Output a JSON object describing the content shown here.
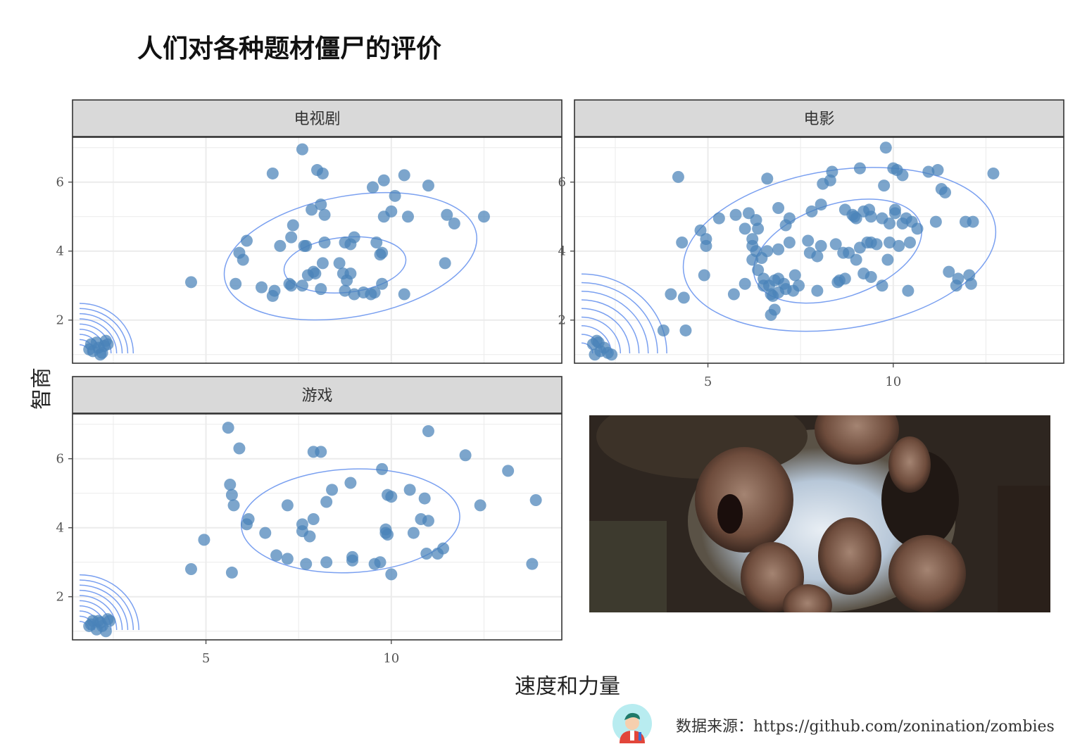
{
  "title": "人们对各种题材僵尸的评价",
  "xlabel": "速度和力量",
  "ylabel": "智商",
  "caption": {
    "label": "数据来源：",
    "url": "https://github.com/zonination/zombies",
    "icon": "avatar-icon"
  },
  "photo": {
    "icon": "zombie-photo",
    "alt": "zombies"
  },
  "colors": {
    "point": "#4a82b8",
    "contour": "#7aa0f0",
    "strip_bg": "#d9d9d9",
    "grid": "#ebebeb",
    "border": "#333333"
  },
  "chart_data": [
    {
      "type": "scatter",
      "facet": "电视剧",
      "x_ticks": [
        5,
        10
      ],
      "y_ticks": [
        2,
        4,
        6
      ],
      "xlim": [
        1.4,
        14.6
      ],
      "ylim": [
        0.75,
        7.3
      ],
      "grid": true,
      "points": [
        [
          1.9,
          1.3
        ],
        [
          2.1,
          1.2
        ],
        [
          2.3,
          1.4
        ],
        [
          1.95,
          1.1
        ],
        [
          2.15,
          1.0
        ],
        [
          2.25,
          1.25
        ],
        [
          2.05,
          1.35
        ],
        [
          1.85,
          1.15
        ],
        [
          2.2,
          1.05
        ],
        [
          2.35,
          1.3
        ],
        [
          7.6,
          6.95
        ],
        [
          6.8,
          6.25
        ],
        [
          8.0,
          6.35
        ],
        [
          8.15,
          6.25
        ],
        [
          9.8,
          6.05
        ],
        [
          10.35,
          6.2
        ],
        [
          11.0,
          5.9
        ],
        [
          9.5,
          5.85
        ],
        [
          10.1,
          5.6
        ],
        [
          8.1,
          5.35
        ],
        [
          7.85,
          5.2
        ],
        [
          8.2,
          5.05
        ],
        [
          9.8,
          5.0
        ],
        [
          10.0,
          5.15
        ],
        [
          10.45,
          5.0
        ],
        [
          11.5,
          5.05
        ],
        [
          11.7,
          4.8
        ],
        [
          12.5,
          5.0
        ],
        [
          7.35,
          4.75
        ],
        [
          6.1,
          4.3
        ],
        [
          5.9,
          3.95
        ],
        [
          6.0,
          3.75
        ],
        [
          7.0,
          4.15
        ],
        [
          7.3,
          4.4
        ],
        [
          7.7,
          4.15
        ],
        [
          7.65,
          4.15
        ],
        [
          8.2,
          4.25
        ],
        [
          8.75,
          4.25
        ],
        [
          8.9,
          4.2
        ],
        [
          9.0,
          4.4
        ],
        [
          9.6,
          4.25
        ],
        [
          9.75,
          3.95
        ],
        [
          9.7,
          3.9
        ],
        [
          8.6,
          3.65
        ],
        [
          8.15,
          3.65
        ],
        [
          7.9,
          3.4
        ],
        [
          7.75,
          3.3
        ],
        [
          7.95,
          3.35
        ],
        [
          8.7,
          3.35
        ],
        [
          8.9,
          3.35
        ],
        [
          8.8,
          3.15
        ],
        [
          7.25,
          3.05
        ],
        [
          7.3,
          3.0
        ],
        [
          7.6,
          3.0
        ],
        [
          8.1,
          2.9
        ],
        [
          8.75,
          2.85
        ],
        [
          9.25,
          2.8
        ],
        [
          9.55,
          2.8
        ],
        [
          9.75,
          3.05
        ],
        [
          10.35,
          2.75
        ],
        [
          11.45,
          3.65
        ],
        [
          4.6,
          3.1
        ],
        [
          5.8,
          3.05
        ],
        [
          6.8,
          2.7
        ],
        [
          6.85,
          2.85
        ],
        [
          9.45,
          2.75
        ],
        [
          6.5,
          2.95
        ],
        [
          9.0,
          2.75
        ]
      ],
      "contours": [
        {
          "cx": 8.9,
          "cy": 3.85,
          "rx": 3.45,
          "ry": 1.75,
          "rot": -0.18
        },
        {
          "cx": 8.75,
          "cy": 3.6,
          "rx": 1.65,
          "ry": 0.8,
          "rot": -0.1
        }
      ],
      "corner_contours": [
        1.45,
        1.3,
        1.15,
        1.0,
        0.85,
        0.7,
        0.55,
        0.4,
        0.25
      ]
    },
    {
      "type": "scatter",
      "facet": "电影",
      "x_ticks": [
        5,
        10
      ],
      "y_ticks": [
        2,
        4,
        6
      ],
      "xlim": [
        1.4,
        14.6
      ],
      "ylim": [
        0.75,
        7.3
      ],
      "grid": true,
      "points": [
        [
          1.9,
          1.3
        ],
        [
          2.1,
          1.1
        ],
        [
          2.0,
          1.4
        ],
        [
          1.95,
          1.0
        ],
        [
          2.2,
          1.2
        ],
        [
          2.3,
          1.05
        ],
        [
          2.05,
          1.35
        ],
        [
          2.4,
          1.0
        ],
        [
          9.8,
          7.0
        ],
        [
          4.2,
          6.15
        ],
        [
          6.6,
          6.1
        ],
        [
          8.35,
          6.3
        ],
        [
          8.1,
          5.95
        ],
        [
          8.3,
          6.05
        ],
        [
          9.1,
          6.4
        ],
        [
          9.75,
          5.9
        ],
        [
          10.0,
          6.4
        ],
        [
          10.1,
          6.35
        ],
        [
          10.25,
          6.2
        ],
        [
          10.95,
          6.3
        ],
        [
          11.2,
          6.35
        ],
        [
          11.3,
          5.8
        ],
        [
          11.4,
          5.7
        ],
        [
          12.7,
          6.25
        ],
        [
          5.3,
          4.95
        ],
        [
          5.75,
          5.05
        ],
        [
          6.1,
          5.1
        ],
        [
          6.3,
          4.9
        ],
        [
          6.0,
          4.65
        ],
        [
          6.35,
          4.65
        ],
        [
          6.9,
          5.25
        ],
        [
          7.1,
          4.75
        ],
        [
          7.2,
          4.95
        ],
        [
          7.8,
          5.15
        ],
        [
          8.05,
          5.35
        ],
        [
          8.7,
          5.2
        ],
        [
          8.9,
          5.05
        ],
        [
          8.95,
          5.0
        ],
        [
          9.0,
          4.95
        ],
        [
          9.2,
          5.15
        ],
        [
          9.35,
          5.2
        ],
        [
          9.4,
          5.0
        ],
        [
          9.7,
          4.95
        ],
        [
          9.9,
          4.8
        ],
        [
          10.05,
          5.1
        ],
        [
          10.05,
          5.2
        ],
        [
          10.25,
          4.8
        ],
        [
          10.35,
          4.95
        ],
        [
          11.15,
          4.85
        ],
        [
          10.65,
          4.65
        ],
        [
          4.8,
          4.6
        ],
        [
          4.95,
          4.35
        ],
        [
          4.95,
          4.15
        ],
        [
          4.3,
          4.25
        ],
        [
          6.2,
          4.35
        ],
        [
          6.2,
          4.15
        ],
        [
          6.3,
          4.0
        ],
        [
          6.45,
          3.8
        ],
        [
          6.6,
          4.0
        ],
        [
          6.9,
          4.05
        ],
        [
          7.2,
          4.25
        ],
        [
          7.7,
          4.3
        ],
        [
          7.75,
          3.95
        ],
        [
          7.95,
          3.85
        ],
        [
          8.05,
          4.15
        ],
        [
          8.45,
          4.2
        ],
        [
          8.65,
          3.95
        ],
        [
          8.8,
          3.95
        ],
        [
          9.0,
          3.75
        ],
        [
          9.1,
          4.1
        ],
        [
          9.3,
          4.25
        ],
        [
          9.4,
          4.25
        ],
        [
          9.55,
          4.2
        ],
        [
          9.9,
          4.25
        ],
        [
          10.15,
          4.15
        ],
        [
          10.45,
          4.25
        ],
        [
          9.85,
          3.75
        ],
        [
          6.2,
          3.75
        ],
        [
          6.35,
          3.45
        ],
        [
          6.5,
          3.2
        ],
        [
          6.5,
          3.0
        ],
        [
          6.65,
          3.0
        ],
        [
          6.8,
          3.15
        ],
        [
          6.9,
          3.2
        ],
        [
          7.05,
          3.05
        ],
        [
          7.35,
          3.3
        ],
        [
          7.45,
          3.0
        ],
        [
          7.3,
          2.85
        ],
        [
          7.1,
          2.9
        ],
        [
          6.9,
          2.8
        ],
        [
          6.7,
          2.75
        ],
        [
          6.75,
          2.7
        ],
        [
          6.8,
          2.3
        ],
        [
          6.7,
          2.15
        ],
        [
          7.95,
          2.85
        ],
        [
          8.5,
          3.1
        ],
        [
          8.55,
          3.15
        ],
        [
          8.7,
          3.2
        ],
        [
          9.2,
          3.35
        ],
        [
          9.4,
          3.25
        ],
        [
          9.7,
          3.0
        ],
        [
          10.4,
          2.85
        ],
        [
          11.5,
          3.4
        ],
        [
          11.7,
          3.0
        ],
        [
          11.75,
          3.2
        ],
        [
          12.05,
          3.3
        ],
        [
          12.15,
          4.85
        ],
        [
          11.95,
          4.85
        ],
        [
          10.5,
          4.85
        ],
        [
          12.1,
          3.05
        ],
        [
          5.7,
          2.75
        ],
        [
          6.0,
          3.05
        ],
        [
          4.0,
          2.75
        ],
        [
          4.35,
          2.65
        ],
        [
          3.8,
          1.7
        ],
        [
          4.4,
          1.7
        ],
        [
          4.9,
          3.3
        ]
      ],
      "contours": [
        {
          "cx": 8.55,
          "cy": 4.05,
          "rx": 4.25,
          "ry": 2.3,
          "rot": -0.15
        },
        {
          "cx": 8.5,
          "cy": 4.0,
          "rx": 2.35,
          "ry": 1.35,
          "rot": -0.32
        }
      ],
      "corner_contours": [
        2.3,
        2.05,
        1.8,
        1.55,
        1.3,
        1.05,
        0.8,
        0.55,
        0.3
      ]
    },
    {
      "type": "scatter",
      "facet": "游戏",
      "x_ticks": [
        5,
        10
      ],
      "y_ticks": [
        2,
        4,
        6
      ],
      "xlim": [
        1.4,
        14.6
      ],
      "ylim": [
        0.75,
        7.3
      ],
      "grid": true,
      "points": [
        [
          1.9,
          1.2
        ],
        [
          2.1,
          1.3
        ],
        [
          2.2,
          1.15
        ],
        [
          2.35,
          1.35
        ],
        [
          2.05,
          1.05
        ],
        [
          2.3,
          1.0
        ],
        [
          1.95,
          1.3
        ],
        [
          2.15,
          1.25
        ],
        [
          2.4,
          1.3
        ],
        [
          1.85,
          1.15
        ],
        [
          5.6,
          6.9
        ],
        [
          5.9,
          6.3
        ],
        [
          7.9,
          6.2
        ],
        [
          8.1,
          6.2
        ],
        [
          11.0,
          6.8
        ],
        [
          12.0,
          6.1
        ],
        [
          13.15,
          5.65
        ],
        [
          5.65,
          5.25
        ],
        [
          5.7,
          4.95
        ],
        [
          5.75,
          4.65
        ],
        [
          7.2,
          4.65
        ],
        [
          8.4,
          5.1
        ],
        [
          8.9,
          5.3
        ],
        [
          9.75,
          5.7
        ],
        [
          8.25,
          4.75
        ],
        [
          9.9,
          4.95
        ],
        [
          10.0,
          4.9
        ],
        [
          10.5,
          5.1
        ],
        [
          10.9,
          4.85
        ],
        [
          12.4,
          4.65
        ],
        [
          13.9,
          4.8
        ],
        [
          6.1,
          4.1
        ],
        [
          6.15,
          4.25
        ],
        [
          6.6,
          3.85
        ],
        [
          7.6,
          3.9
        ],
        [
          7.6,
          4.1
        ],
        [
          7.8,
          3.75
        ],
        [
          7.9,
          4.25
        ],
        [
          9.85,
          3.85
        ],
        [
          9.9,
          3.8
        ],
        [
          10.6,
          3.85
        ],
        [
          10.8,
          4.25
        ],
        [
          11.0,
          4.2
        ],
        [
          6.9,
          3.2
        ],
        [
          7.2,
          3.1
        ],
        [
          7.7,
          2.95
        ],
        [
          8.25,
          3.0
        ],
        [
          8.95,
          3.15
        ],
        [
          8.95,
          3.05
        ],
        [
          9.55,
          2.95
        ],
        [
          9.7,
          3.0
        ],
        [
          10.0,
          2.65
        ],
        [
          10.95,
          3.25
        ],
        [
          11.25,
          3.25
        ],
        [
          11.4,
          3.4
        ],
        [
          4.6,
          2.8
        ],
        [
          4.95,
          3.65
        ],
        [
          5.7,
          2.7
        ],
        [
          13.8,
          2.95
        ],
        [
          9.85,
          3.95
        ]
      ],
      "contours": [
        {
          "cx": 8.9,
          "cy": 4.2,
          "rx": 2.95,
          "ry": 1.5,
          "rot": -0.05
        }
      ],
      "corner_contours": [
        1.6,
        1.45,
        1.3,
        1.15,
        1.0,
        0.85,
        0.7,
        0.55,
        0.4,
        0.25
      ]
    }
  ]
}
